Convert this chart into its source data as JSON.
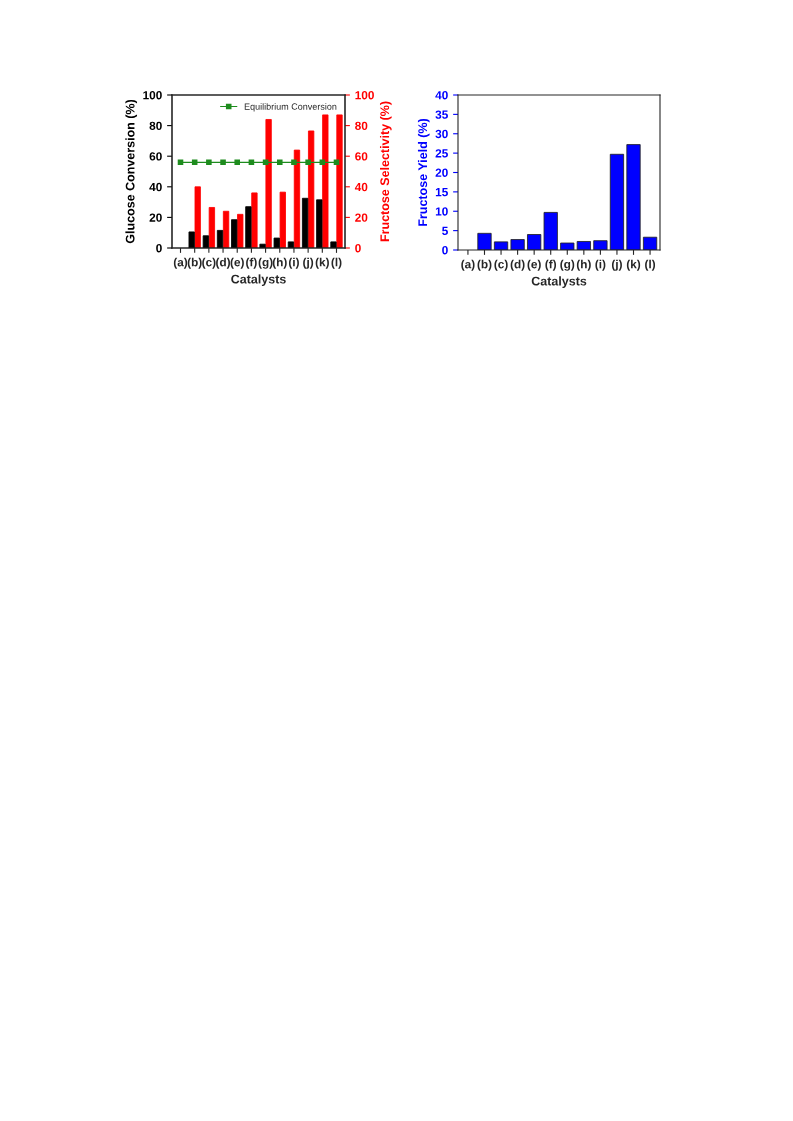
{
  "chart_data": [
    {
      "type": "bar",
      "xlabel": "Catalysts",
      "ylabel": "Glucose Conversion (%)",
      "y2label": "Fructose Selectivity (%)",
      "categories": [
        "(a)",
        "(b)",
        "(c)",
        "(d)",
        "(e)",
        "(f)",
        "(g)",
        "(h)",
        "(i)",
        "(j)",
        "(k)",
        "(l)"
      ],
      "series": [
        {
          "color": "#000000",
          "values": [
            null,
            10.5,
            8,
            11.5,
            18.5,
            27,
            2.5,
            6.5,
            4,
            32.5,
            31.5,
            4
          ]
        },
        {
          "color": "#ff0000",
          "axis": "y2",
          "values": [
            null,
            40,
            26.5,
            24,
            22,
            36,
            84,
            36.5,
            64,
            76.5,
            87,
            87
          ]
        },
        {
          "type": "line",
          "name": "Equilibrium Conversion",
          "color": "#1e8c1e",
          "values": [
            56,
            56,
            56,
            56,
            56,
            56,
            56,
            56,
            56,
            56,
            56,
            56
          ]
        }
      ],
      "ylim": [
        0,
        100
      ],
      "yticks": [
        0,
        20,
        40,
        60,
        80,
        100
      ],
      "y2lim": [
        0,
        100
      ],
      "y2ticks": [
        0,
        20,
        40,
        60,
        80,
        100
      ],
      "marker": "square",
      "legend": "top right",
      "grid": false
    },
    {
      "type": "bar",
      "xlabel": "Catalysts",
      "ylabel": "Fructose Yield (%)",
      "categories": [
        "(a)",
        "(b)",
        "(c)",
        "(d)",
        "(e)",
        "(f)",
        "(g)",
        "(h)",
        "(i)",
        "(j)",
        "(k)",
        "(l)"
      ],
      "series": [
        {
          "color": "#0000ff",
          "values": [
            null,
            4.3,
            2.1,
            2.7,
            4.0,
            9.7,
            1.8,
            2.2,
            2.4,
            24.7,
            27.2,
            3.3
          ]
        }
      ],
      "ylim": [
        0,
        40
      ],
      "yticks": [
        0,
        5,
        10,
        15,
        20,
        25,
        30,
        35,
        40
      ],
      "grid": false
    }
  ]
}
